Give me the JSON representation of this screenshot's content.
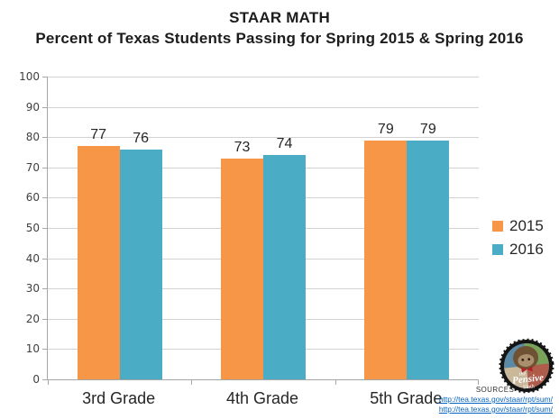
{
  "title": {
    "line1": "STAAR MATH",
    "line2": "Percent of Texas Students Passing for Spring 2015 & Spring 2016"
  },
  "chart_data": {
    "type": "bar",
    "title": "STAAR MATH — Percent of Texas Students Passing for Spring 2015 & Spring 2016",
    "categories": [
      "3rd Grade",
      "4th Grade",
      "5th Grade"
    ],
    "series": [
      {
        "name": "2015",
        "color": "#F79646",
        "values": [
          77,
          73,
          79
        ]
      },
      {
        "name": "2016",
        "color": "#4BACC6",
        "values": [
          76,
          74,
          79
        ]
      }
    ],
    "xlabel": "",
    "ylabel": "",
    "ylim": [
      0,
      100
    ],
    "ytick_step": 10,
    "grid": true,
    "legend_position": "right",
    "data_labels": true
  },
  "sources": {
    "label": "SOURCES",
    "links": [
      "http://tea.texas.gov/staar/rpt/sum/",
      "http://tea.texas.gov/staar/rpt/sum/"
    ]
  },
  "logo": {
    "text_top": "the",
    "text_main": "Pensive",
    "text_bottom": "Sloth"
  },
  "colors": {
    "grid": "#D2D2D2",
    "axis": "#A6A6A6",
    "text": "#262626",
    "link": "#0563C1",
    "series_2015": "#F79646",
    "series_2016": "#4BACC6"
  }
}
